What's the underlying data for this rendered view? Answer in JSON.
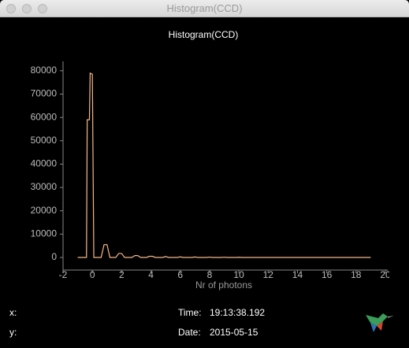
{
  "window": {
    "title": "Histogram(CCD)"
  },
  "chart_data": {
    "type": "line",
    "title": "Histogram(CCD)",
    "xlabel": "Nr of photons",
    "x": [
      -1,
      -0.4,
      -0.35,
      -0.2,
      -0.15,
      0,
      0.1,
      0.6,
      0.8,
      1.0,
      1.2,
      1.6,
      1.8,
      2.0,
      2.2,
      2.7,
      2.9,
      3.1,
      3.3,
      3.7,
      3.9,
      4.1,
      4.3,
      4.8,
      5.0,
      5.2,
      5.8,
      6.0,
      6.2,
      6.8,
      7.0,
      7.2,
      7.8,
      8.0,
      8.2,
      8.8,
      9.0,
      9.2,
      9.8,
      10.0,
      10.2,
      19
    ],
    "values": [
      0,
      0,
      59000,
      59000,
      79000,
      78500,
      0,
      0,
      5500,
      5500,
      0,
      0,
      1700,
      1700,
      0,
      0,
      800,
      800,
      0,
      0,
      500,
      500,
      0,
      0,
      400,
      0,
      0,
      250,
      0,
      0,
      200,
      0,
      0,
      150,
      0,
      0,
      100,
      0,
      0,
      80,
      0,
      0
    ],
    "color": "#f4b88a",
    "xlim": [
      -2,
      20
    ],
    "ylim": [
      -5400,
      84000
    ],
    "xticks": [
      -2,
      0,
      2,
      4,
      6,
      8,
      10,
      12,
      14,
      16,
      18,
      20
    ],
    "yticks": [
      0,
      10000,
      20000,
      30000,
      40000,
      50000,
      60000,
      70000,
      80000
    ]
  },
  "footer": {
    "x_label": "x:",
    "y_label": "y:",
    "time_label": "Time:",
    "time": "19:13:38.192",
    "date_label": "Date:",
    "date": "2015-05-15"
  }
}
